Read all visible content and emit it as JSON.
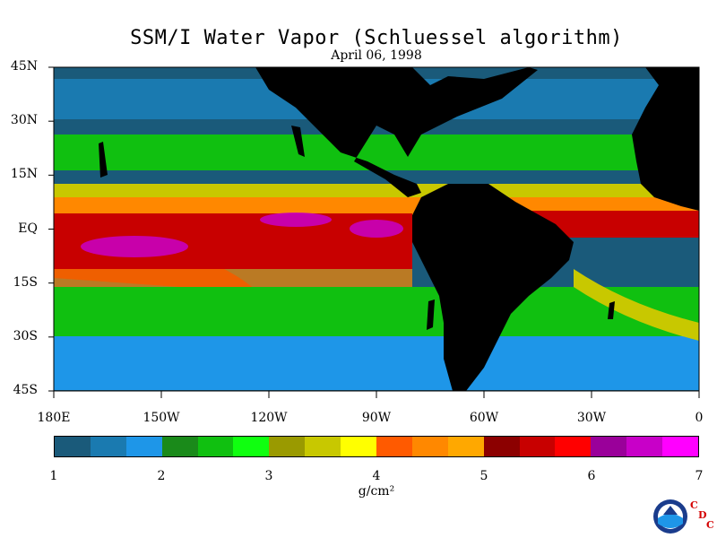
{
  "title": "SSM/I Water Vapor (Schluessel algorithm)",
  "date": "April 06, 1998",
  "lat_labels": [
    "45N",
    "30N",
    "15N",
    "EQ",
    "15S",
    "30S",
    "45S"
  ],
  "lon_labels": [
    "180E",
    "150W",
    "120W",
    "90W",
    "60W",
    "30W",
    "0"
  ],
  "colorbar": {
    "colors": [
      "#1a5a7a",
      "#1a7ab0",
      "#1e96e8",
      "#1a8a1a",
      "#10c010",
      "#10ff10",
      "#9a9a00",
      "#c8c800",
      "#ffff00",
      "#ff5a00",
      "#ff8800",
      "#ffa800",
      "#8c0000",
      "#c80000",
      "#ff0000",
      "#9a009a",
      "#c800c8",
      "#ff00ff"
    ],
    "tick_labels": [
      "1",
      "2",
      "3",
      "4",
      "5",
      "6",
      "7"
    ],
    "units": "g/cm²"
  },
  "logo": {
    "agency": "NOAA",
    "letters": [
      "C",
      "D",
      "C"
    ]
  }
}
